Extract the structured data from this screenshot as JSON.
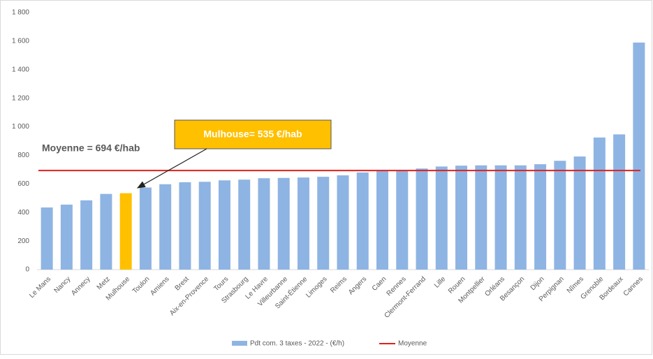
{
  "chart_data": {
    "type": "bar",
    "categories": [
      "Le Mans",
      "Nancy",
      "Annecy",
      "Metz",
      "Mulhouse",
      "Toulon",
      "Amiens",
      "Brest",
      "Aix-en-Provence",
      "Tours",
      "Strasbourg",
      "Le Havre",
      "Villeurbanne",
      "Saint-Étienne",
      "Limoges",
      "Reims",
      "Angers",
      "Caen",
      "Rennes",
      "Clermont-Ferrand",
      "Lille",
      "Rouen",
      "Montpellier",
      "Orléans",
      "Besançon",
      "Dijon",
      "Perpignan",
      "Nîmes",
      "Grenoble",
      "Bordeaux",
      "Cannes"
    ],
    "series": [
      {
        "name": "Pdt com. 3 taxes - 2022 - (€/h)",
        "color": "#8eb4e3",
        "values": [
          435,
          455,
          485,
          530,
          535,
          575,
          598,
          612,
          615,
          625,
          630,
          640,
          642,
          645,
          650,
          660,
          680,
          690,
          695,
          708,
          722,
          728,
          730,
          730,
          730,
          738,
          762,
          792,
          925,
          947,
          1590
        ],
        "colors": [
          "#8eb4e3",
          "#8eb4e3",
          "#8eb4e3",
          "#8eb4e3",
          "#ffc000",
          "#8eb4e3",
          "#8eb4e3",
          "#8eb4e3",
          "#8eb4e3",
          "#8eb4e3",
          "#8eb4e3",
          "#8eb4e3",
          "#8eb4e3",
          "#8eb4e3",
          "#8eb4e3",
          "#8eb4e3",
          "#8eb4e3",
          "#8eb4e3",
          "#8eb4e3",
          "#8eb4e3",
          "#8eb4e3",
          "#8eb4e3",
          "#8eb4e3",
          "#8eb4e3",
          "#8eb4e3",
          "#8eb4e3",
          "#8eb4e3",
          "#8eb4e3",
          "#8eb4e3",
          "#8eb4e3",
          "#8eb4e3"
        ]
      }
    ],
    "average": {
      "name": "Moyenne",
      "value": 694,
      "color": "#e0201e"
    },
    "annotations": [
      {
        "text": "Moyenne = 694 €/hab"
      },
      {
        "text": "Mulhouse= 535 €/hab"
      }
    ],
    "ylim": [
      0,
      1800
    ],
    "yticks": [
      0,
      200,
      400,
      600,
      800,
      {
        "value": 1000,
        "label": "1 000"
      },
      {
        "value": 1200,
        "label": "1 200"
      },
      {
        "value": 1400,
        "label": "1 400"
      },
      {
        "value": 1600,
        "label": "1 600"
      },
      {
        "value": 1800,
        "label": "1 800"
      }
    ],
    "grid": false
  }
}
